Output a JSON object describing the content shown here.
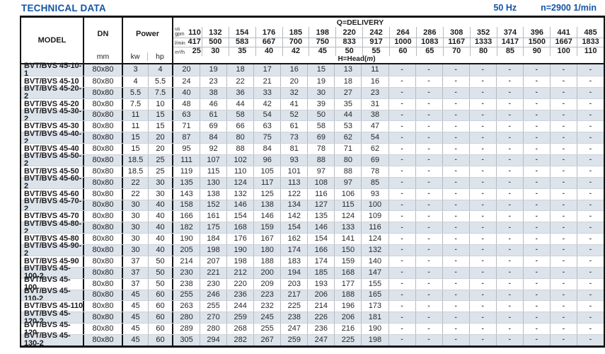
{
  "page": {
    "title": "TECHNICAL DATA",
    "frequency": "50 Hz",
    "speed": "n=2900 1/min"
  },
  "colors": {
    "accent_blue": "#1355a5",
    "row_shade": "#dce3eb",
    "border_black": "#141414",
    "grid_gray": "#b4bac1"
  },
  "table": {
    "headers": {
      "model": "MODEL",
      "dn": "DN",
      "dn_unit": "mm",
      "power": "Power",
      "power_units": [
        "kw",
        "hp"
      ],
      "delivery_title": "Q=DELIVERY",
      "head_prefix": "H=Head(",
      "head_unit": "m",
      "head_suffix": ")",
      "unit_rows": [
        {
          "label_top": "us",
          "label": "gpm",
          "values": [
            "110",
            "132",
            "154",
            "176",
            "185",
            "198",
            "220",
            "242",
            "264",
            "286",
            "308",
            "352",
            "374",
            "396",
            "441",
            "485"
          ]
        },
        {
          "label": "l/min",
          "values": [
            "417",
            "500",
            "583",
            "667",
            "700",
            "750",
            "833",
            "917",
            "1000",
            "1083",
            "1167",
            "1333",
            "1417",
            "1500",
            "1667",
            "1833"
          ]
        },
        {
          "label": "m³/h",
          "values": [
            "25",
            "30",
            "35",
            "40",
            "42",
            "45",
            "50",
            "55",
            "60",
            "65",
            "70",
            "80",
            "85",
            "90",
            "100",
            "110"
          ]
        }
      ]
    },
    "rows": [
      {
        "model": "BVT/BVS 45-10-1",
        "dn": "80x80",
        "kw": "3",
        "hp": "4",
        "heads": [
          "20",
          "19",
          "18",
          "17",
          "16",
          "15",
          "13",
          "11",
          "-",
          "-",
          "-",
          "-",
          "-",
          "-",
          "-",
          "-"
        ]
      },
      {
        "model": "BVT/BVS 45-10",
        "dn": "80x80",
        "kw": "4",
        "hp": "5.5",
        "heads": [
          "24",
          "23",
          "22",
          "21",
          "20",
          "19",
          "18",
          "16",
          "-",
          "-",
          "-",
          "-",
          "-",
          "-",
          "-",
          "-"
        ]
      },
      {
        "model": "BVT/BVS 45-20-2",
        "dn": "80x80",
        "kw": "5.5",
        "hp": "7.5",
        "heads": [
          "40",
          "38",
          "36",
          "33",
          "32",
          "30",
          "27",
          "23",
          "-",
          "-",
          "-",
          "-",
          "-",
          "-",
          "-",
          "-"
        ]
      },
      {
        "model": "BVT/BVS 45-20",
        "dn": "80x80",
        "kw": "7.5",
        "hp": "10",
        "heads": [
          "48",
          "46",
          "44",
          "42",
          "41",
          "39",
          "35",
          "31",
          "-",
          "-",
          "-",
          "-",
          "-",
          "-",
          "-",
          "-"
        ]
      },
      {
        "model": "BVT/BVS 45-30-2",
        "dn": "80x80",
        "kw": "11",
        "hp": "15",
        "heads": [
          "63",
          "61",
          "58",
          "54",
          "52",
          "50",
          "44",
          "38",
          "-",
          "-",
          "-",
          "-",
          "-",
          "-",
          "-",
          "-"
        ]
      },
      {
        "model": "BVT/BVS 45-30",
        "dn": "80x80",
        "kw": "11",
        "hp": "15",
        "heads": [
          "71",
          "69",
          "66",
          "63",
          "61",
          "58",
          "53",
          "47",
          "-",
          "-",
          "-",
          "-",
          "-",
          "-",
          "-",
          "-"
        ]
      },
      {
        "model": "BVT/BVS 45-40-2",
        "dn": "80x80",
        "kw": "15",
        "hp": "20",
        "heads": [
          "87",
          "84",
          "80",
          "75",
          "73",
          "69",
          "62",
          "54",
          "-",
          "-",
          "-",
          "-",
          "-",
          "-",
          "-",
          "-"
        ]
      },
      {
        "model": "BVT/BVS 45-40",
        "dn": "80x80",
        "kw": "15",
        "hp": "20",
        "heads": [
          "95",
          "92",
          "88",
          "84",
          "81",
          "78",
          "71",
          "62",
          "-",
          "-",
          "-",
          "-",
          "-",
          "-",
          "-",
          "-"
        ]
      },
      {
        "model": "BVT/BVS 45-50-2",
        "dn": "80x80",
        "kw": "18.5",
        "hp": "25",
        "heads": [
          "111",
          "107",
          "102",
          "96",
          "93",
          "88",
          "80",
          "69",
          "-",
          "-",
          "-",
          "-",
          "-",
          "-",
          "-",
          "-"
        ]
      },
      {
        "model": "BVT/BVS 45-50",
        "dn": "80x80",
        "kw": "18.5",
        "hp": "25",
        "heads": [
          "119",
          "115",
          "110",
          "105",
          "101",
          "97",
          "88",
          "78",
          "-",
          "-",
          "-",
          "-",
          "-",
          "-",
          "-",
          "-"
        ]
      },
      {
        "model": "BVT/BVS 45-60-2",
        "dn": "80x80",
        "kw": "22",
        "hp": "30",
        "heads": [
          "135",
          "130",
          "124",
          "117",
          "113",
          "108",
          "97",
          "85",
          "-",
          "-",
          "-",
          "-",
          "-",
          "-",
          "-",
          "-"
        ]
      },
      {
        "model": "BVT/BVS 45-60",
        "dn": "80x80",
        "kw": "22",
        "hp": "30",
        "heads": [
          "143",
          "138",
          "132",
          "125",
          "122",
          "116",
          "106",
          "93",
          "-",
          "-",
          "-",
          "-",
          "-",
          "-",
          "-",
          "-"
        ]
      },
      {
        "model": "BVT/BVS 45-70-2",
        "dn": "80x80",
        "kw": "30",
        "hp": "40",
        "heads": [
          "158",
          "152",
          "146",
          "138",
          "134",
          "127",
          "115",
          "100",
          "-",
          "-",
          "-",
          "-",
          "-",
          "-",
          "-",
          "-"
        ]
      },
      {
        "model": "BVT/BVS 45-70",
        "dn": "80x80",
        "kw": "30",
        "hp": "40",
        "heads": [
          "166",
          "161",
          "154",
          "146",
          "142",
          "135",
          "124",
          "109",
          "-",
          "-",
          "-",
          "-",
          "-",
          "-",
          "-",
          "-"
        ]
      },
      {
        "model": "BVT/BVS 45-80-2",
        "dn": "80x80",
        "kw": "30",
        "hp": "40",
        "heads": [
          "182",
          "175",
          "168",
          "159",
          "154",
          "146",
          "133",
          "116",
          "-",
          "-",
          "-",
          "-",
          "-",
          "-",
          "-",
          "-"
        ]
      },
      {
        "model": "BVT/BVS 45-80",
        "dn": "80x80",
        "kw": "30",
        "hp": "40",
        "heads": [
          "190",
          "184",
          "176",
          "167",
          "162",
          "154",
          "141",
          "124",
          "-",
          "-",
          "-",
          "-",
          "-",
          "-",
          "-",
          "-"
        ]
      },
      {
        "model": "BVT/BVS 45-90-2",
        "dn": "80x80",
        "kw": "30",
        "hp": "40",
        "heads": [
          "205",
          "198",
          "190",
          "180",
          "174",
          "166",
          "150",
          "132",
          "-",
          "-",
          "-",
          "-",
          "-",
          "-",
          "-",
          "-"
        ]
      },
      {
        "model": "BVT/BVS 45-90",
        "dn": "80x80",
        "kw": "37",
        "hp": "50",
        "heads": [
          "214",
          "207",
          "198",
          "188",
          "183",
          "174",
          "159",
          "140",
          "-",
          "-",
          "-",
          "-",
          "-",
          "-",
          "-",
          "-"
        ]
      },
      {
        "model": "BVT/BVS 45-100-2",
        "dn": "80x80",
        "kw": "37",
        "hp": "50",
        "heads": [
          "230",
          "221",
          "212",
          "200",
          "194",
          "185",
          "168",
          "147",
          "-",
          "-",
          "-",
          "-",
          "-",
          "-",
          "-",
          "-"
        ]
      },
      {
        "model": "BVT/BVS 45-100",
        "dn": "80x80",
        "kw": "37",
        "hp": "50",
        "heads": [
          "238",
          "230",
          "220",
          "209",
          "203",
          "193",
          "177",
          "155",
          "-",
          "-",
          "-",
          "-",
          "-",
          "-",
          "-",
          "-"
        ]
      },
      {
        "model": "BVT/BVS 45-110-2",
        "dn": "80x80",
        "kw": "45",
        "hp": "60",
        "heads": [
          "255",
          "246",
          "236",
          "223",
          "217",
          "206",
          "188",
          "165",
          "-",
          "-",
          "-",
          "-",
          "-",
          "-",
          "-",
          "-"
        ]
      },
      {
        "model": "BVT/BVS 45-110",
        "dn": "80x80",
        "kw": "45",
        "hp": "60",
        "heads": [
          "263",
          "255",
          "244",
          "232",
          "225",
          "214",
          "196",
          "173",
          "-",
          "-",
          "-",
          "-",
          "-",
          "-",
          "-",
          "-"
        ]
      },
      {
        "model": "BVT/BVS 45-120-2",
        "dn": "80x80",
        "kw": "45",
        "hp": "60",
        "heads": [
          "280",
          "270",
          "259",
          "245",
          "238",
          "226",
          "206",
          "181",
          "-",
          "-",
          "-",
          "-",
          "-",
          "-",
          "-",
          "-"
        ]
      },
      {
        "model": "BVT/BVS 45-120",
        "dn": "80x80",
        "kw": "45",
        "hp": "60",
        "heads": [
          "289",
          "280",
          "268",
          "255",
          "247",
          "236",
          "216",
          "190",
          "-",
          "-",
          "-",
          "-",
          "-",
          "-",
          "-",
          "-"
        ]
      },
      {
        "model": "BVT/BVS 45-130-2",
        "dn": "80x80",
        "kw": "45",
        "hp": "60",
        "heads": [
          "305",
          "294",
          "282",
          "267",
          "259",
          "247",
          "225",
          "198",
          "-",
          "-",
          "-",
          "-",
          "-",
          "-",
          "-",
          "-"
        ]
      }
    ]
  }
}
